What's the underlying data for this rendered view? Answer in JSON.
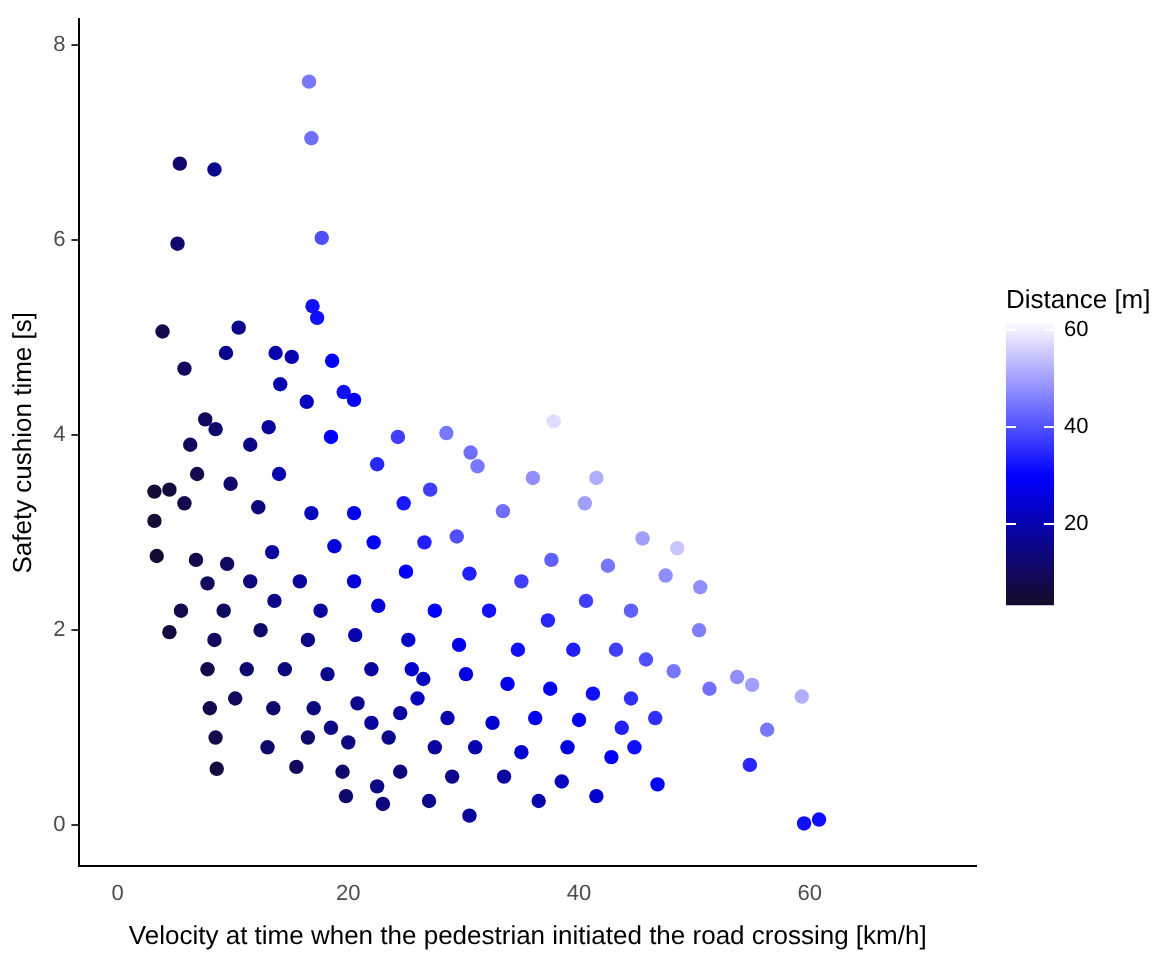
{
  "chart_data": {
    "type": "scatter",
    "xlabel": "Velocity at time when the pedestrian initiated the road crossing [km/h]",
    "ylabel": "Safety cushion time [s]",
    "clabel": "Distance [m]",
    "x": [
      16.6,
      16.8,
      17.7,
      5.4,
      8.4,
      5.2,
      16.9,
      17.3,
      3.9,
      10.5,
      9.4,
      13.7,
      15.1,
      18.6,
      5.8,
      19.6,
      20.5,
      14.1,
      16.4,
      7.6,
      8.5,
      13.1,
      6.3,
      11.5,
      18.5,
      24.3,
      3.2,
      4.5,
      6.9,
      9.8,
      14,
      22.5,
      28.5,
      30.6,
      31.2,
      37.8,
      41.5,
      36,
      27.1,
      3.2,
      5.8,
      12.2,
      16.8,
      20.5,
      24.8,
      33.4,
      40.5,
      45.5,
      48.5,
      3.4,
      6.8,
      9.5,
      13.4,
      18.8,
      22.2,
      26.6,
      29.4,
      37.6,
      42.5,
      47.5,
      50.5,
      7.8,
      11.5,
      15.8,
      20.5,
      25,
      30.5,
      35,
      40.6,
      44.5,
      50.4,
      5.5,
      9.2,
      13.6,
      17.6,
      22.6,
      27.5,
      32.2,
      37.3,
      4.5,
      8.4,
      12.4,
      16.5,
      20.6,
      25.2,
      29.6,
      34.7,
      39.5,
      43.2,
      45.8,
      48.2,
      53.7,
      7.8,
      11.2,
      14.5,
      18.2,
      22,
      26.5,
      30.2,
      33.8,
      37.5,
      41.2,
      44.5,
      51.3,
      55,
      59.3,
      8,
      10.2,
      13.5,
      17,
      20.8,
      24.5,
      28.6,
      32.5,
      36.2,
      40,
      43.7,
      46.6,
      56.3,
      8.5,
      13,
      16.5,
      20,
      23.5,
      27.5,
      31,
      35,
      39,
      42.8,
      44.8,
      8.6,
      15.5,
      19.5,
      24.5,
      29,
      33.5,
      38.5,
      46.8,
      54.8,
      19.8,
      23,
      27,
      30.5,
      36.5,
      41.5,
      59.5,
      60.8,
      22.5,
      26,
      22,
      18.5,
      25.5
    ],
    "values": [
      7.62,
      7.04,
      6.02,
      6.78,
      6.72,
      5.96,
      5.32,
      5.2,
      5.06,
      5.1,
      4.84,
      4.84,
      4.8,
      4.76,
      4.68,
      4.44,
      4.36,
      4.52,
      4.34,
      4.16,
      4.06,
      4.08,
      3.9,
      3.9,
      3.98,
      3.98,
      3.42,
      3.44,
      3.6,
      3.5,
      3.6,
      3.7,
      4.02,
      3.82,
      3.68,
      4.14,
      3.56,
      3.56,
      3.44,
      3.12,
      3.3,
      3.26,
      3.2,
      3.2,
      3.3,
      3.22,
      3.3,
      2.94,
      2.84,
      2.76,
      2.72,
      2.68,
      2.8,
      2.86,
      2.9,
      2.9,
      2.96,
      2.72,
      2.66,
      2.56,
      2.44,
      2.48,
      2.5,
      2.5,
      2.5,
      2.6,
      2.58,
      2.5,
      2.3,
      2.2,
      2.0,
      2.2,
      2.2,
      2.3,
      2.2,
      2.25,
      2.2,
      2.2,
      2.1,
      1.98,
      1.9,
      2.0,
      1.9,
      1.95,
      1.9,
      1.85,
      1.8,
      1.8,
      1.8,
      1.7,
      1.58,
      1.52,
      1.6,
      1.6,
      1.6,
      1.55,
      1.6,
      1.5,
      1.55,
      1.45,
      1.4,
      1.35,
      1.3,
      1.4,
      1.44,
      1.32,
      1.2,
      1.3,
      1.2,
      1.2,
      1.25,
      1.15,
      1.1,
      1.05,
      1.1,
      1.08,
      1.0,
      1.1,
      0.98,
      0.9,
      0.8,
      0.9,
      0.85,
      0.9,
      0.8,
      0.8,
      0.75,
      0.8,
      0.7,
      0.8,
      0.58,
      0.6,
      0.55,
      0.55,
      0.5,
      0.5,
      0.45,
      0.42,
      0.62,
      0.3,
      0.22,
      0.25,
      0.1,
      0.25,
      0.3,
      0.02,
      0.06,
      0.4,
      1.3,
      1.05,
      1.0,
      1.6
    ],
    "cvalues": [
      45,
      44,
      40,
      12,
      16,
      12,
      32,
      32,
      8,
      16,
      16,
      20,
      20,
      30,
      10,
      32,
      30,
      20,
      22,
      10,
      12,
      18,
      10,
      15,
      30,
      38,
      5,
      6,
      8,
      12,
      20,
      35,
      45,
      44,
      45,
      58,
      52,
      48,
      38,
      5,
      8,
      14,
      22,
      28,
      33,
      44,
      50,
      50,
      55,
      5,
      8,
      10,
      18,
      25,
      30,
      34,
      40,
      42,
      45,
      48,
      48,
      10,
      14,
      18,
      25,
      30,
      34,
      38,
      38,
      42,
      46,
      8,
      10,
      15,
      18,
      25,
      30,
      32,
      35,
      6,
      10,
      12,
      15,
      20,
      24,
      28,
      32,
      34,
      38,
      40,
      45,
      48,
      8,
      12,
      14,
      16,
      18,
      22,
      26,
      28,
      30,
      32,
      36,
      44,
      50,
      52,
      8,
      10,
      12,
      14,
      16,
      18,
      20,
      24,
      28,
      30,
      34,
      36,
      45,
      8,
      12,
      12,
      14,
      16,
      18,
      20,
      24,
      26,
      30,
      32,
      6,
      10,
      12,
      14,
      16,
      18,
      22,
      30,
      35,
      12,
      14,
      16,
      18,
      20,
      24,
      32,
      32,
      15,
      22,
      18,
      15,
      24
    ],
    "xlim": [
      -3.3,
      74.4
    ],
    "xticks": [
      0,
      20,
      40,
      60
    ],
    "ylim": [
      -0.42,
      8.26
    ],
    "yticks": [
      0,
      2,
      4,
      6,
      8
    ],
    "clim": [
      3.5,
      61.2
    ],
    "cticks": [
      20,
      40,
      60
    ],
    "grid": false,
    "legend": false,
    "marker": "circle"
  }
}
